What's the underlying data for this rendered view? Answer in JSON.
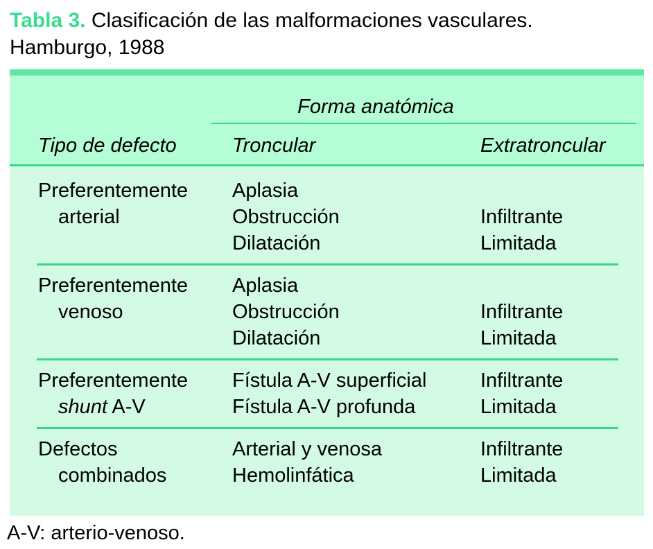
{
  "title": {
    "label": "Tabla 3.",
    "line1": "Clasificación de las malformaciones vasculares.",
    "line2": "Hamburgo, 1988"
  },
  "table": {
    "header": {
      "group": "Forma anatómica",
      "col_defect": "Tipo de defecto",
      "col_troncular": "Troncular",
      "col_extratroncular": "Extratroncular"
    },
    "rows": [
      {
        "lines": [
          {
            "c1": "Preferentemente",
            "c2": "Aplasia",
            "c3": ""
          },
          {
            "c1": "arterial",
            "c2": "Obstrucción",
            "c3": "Infiltrante"
          },
          {
            "c1": "",
            "c2": "Dilatación",
            "c3": "Limitada"
          }
        ]
      },
      {
        "lines": [
          {
            "c1": "Preferentemente",
            "c2": "Aplasia",
            "c3": ""
          },
          {
            "c1": "venoso",
            "c2": "Obstrucción",
            "c3": "Infiltrante"
          },
          {
            "c1": "",
            "c2": "Dilatación",
            "c3": "Limitada"
          }
        ]
      },
      {
        "lines": [
          {
            "c1": "Preferentemente",
            "c2": "Fístula A-V superficial",
            "c3": "Infiltrante"
          },
          {
            "c1_italic": "shunt",
            "c1_rest": " A-V",
            "c2": "Fístula A-V profunda",
            "c3": "Limitada"
          }
        ]
      },
      {
        "lines": [
          {
            "c1": "Defectos",
            "c2": "Arterial y venosa",
            "c3": "Infiltrante"
          },
          {
            "c1": "combinados",
            "c2": "Hemolinfática",
            "c3": "Limitada"
          }
        ]
      }
    ]
  },
  "footnote": "A-V: arterio-venoso.",
  "colors": {
    "title_green": "#3bdc8e",
    "topbar_green": "#62e8a4",
    "rule_green": "#35d98a",
    "header_bg": "#b4fdd5",
    "body_bg": "#d3fbe4",
    "text": "#000000"
  }
}
